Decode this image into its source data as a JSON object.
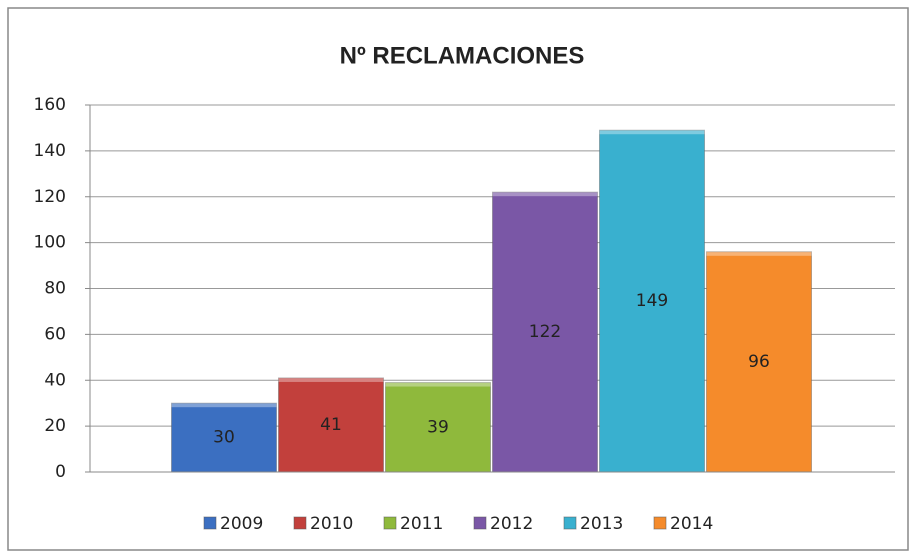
{
  "chart_data": {
    "type": "bar",
    "title": "Nº RECLAMACIONES",
    "categories": [
      null
    ],
    "series": [
      {
        "name": "2009",
        "color": "#3b6fc1",
        "values": [
          30
        ]
      },
      {
        "name": "2010",
        "color": "#c2403c",
        "values": [
          41
        ]
      },
      {
        "name": "2011",
        "color": "#8fb93c",
        "values": [
          39
        ]
      },
      {
        "name": "2012",
        "color": "#7a57a6",
        "values": [
          122
        ]
      },
      {
        "name": "2013",
        "color": "#39b0cf",
        "values": [
          149
        ]
      },
      {
        "name": "2014",
        "color": "#f58b2b",
        "values": [
          96
        ]
      }
    ],
    "ylim": [
      0,
      160
    ],
    "yticks": [
      0,
      20,
      40,
      60,
      80,
      100,
      120,
      140,
      160
    ],
    "grid": true,
    "legend": "bottom"
  }
}
